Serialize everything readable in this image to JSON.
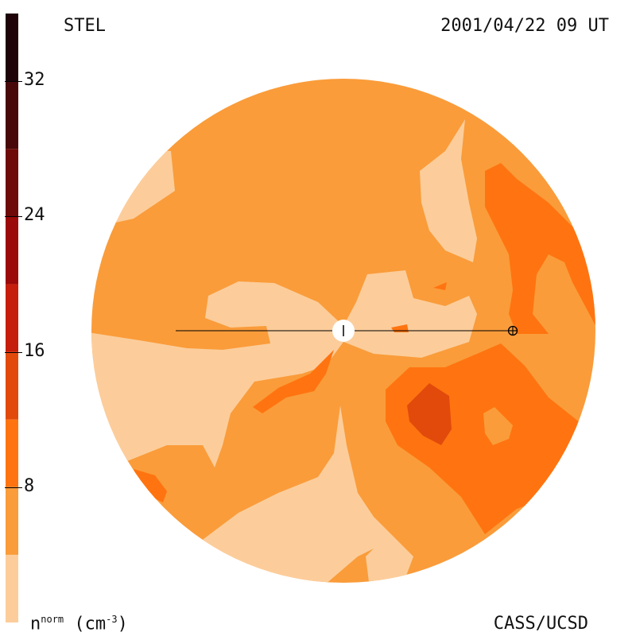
{
  "header": {
    "source": "STEL",
    "datetime": "2001/04/22 09 UT"
  },
  "footer": {
    "credit": "CASS/UCSD",
    "quantity": "n",
    "quantity_sup": "norm",
    "unit_open": "(cm",
    "unit_sup": "-3",
    "unit_close": ")"
  },
  "colors": {
    "background": "#ffffff",
    "line": "#000000",
    "sun": "#ffffff"
  },
  "chart_data": {
    "type": "heatmap",
    "title": "STEL",
    "subtitle": "2001/04/22 09 UT",
    "quantity_label": "n^norm (cm^-3)",
    "colorbar": {
      "min": 0,
      "max": 36,
      "ticks": [
        8,
        16,
        24,
        32
      ],
      "tick_labels": [
        "8",
        "16",
        "24",
        "32"
      ],
      "levels": [
        {
          "from": 0,
          "to": 4,
          "color": "#fccd9b"
        },
        {
          "from": 4,
          "to": 8,
          "color": "#fa9c3a"
        },
        {
          "from": 8,
          "to": 12,
          "color": "#ff7410"
        },
        {
          "from": 12,
          "to": 16,
          "color": "#e24a0c"
        },
        {
          "from": 16,
          "to": 20,
          "color": "#c61e0c"
        },
        {
          "from": 20,
          "to": 24,
          "color": "#9b0a08"
        },
        {
          "from": 24,
          "to": 28,
          "color": "#6e0a08"
        },
        {
          "from": 28,
          "to": 32,
          "color": "#48080a"
        },
        {
          "from": 32,
          "to": 36,
          "color": "#1e0408"
        }
      ]
    },
    "observer_symbols": [
      "sun",
      "earth"
    ]
  }
}
